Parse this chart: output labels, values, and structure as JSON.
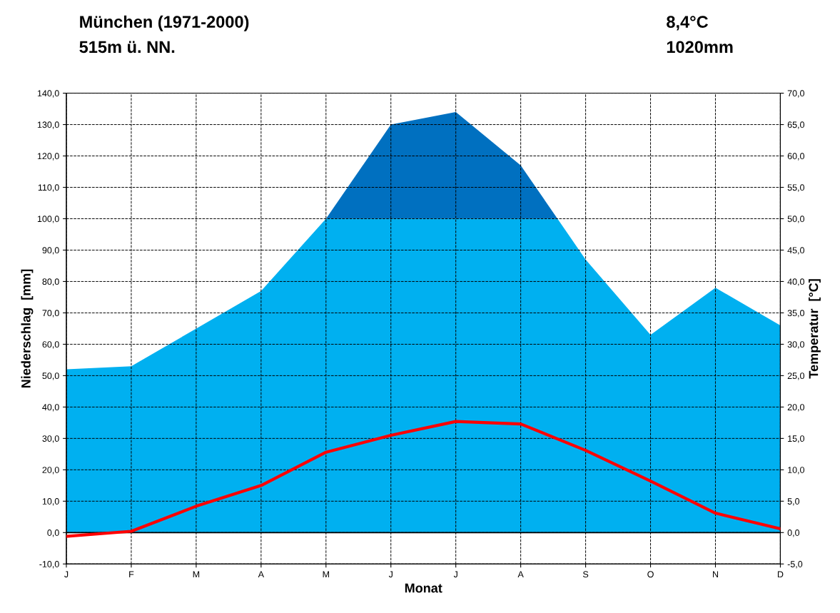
{
  "chart_data": {
    "type": "area",
    "title": "München (1971-2000)",
    "subtitle": "515m ü. NN.",
    "annotations": [
      "8,4°C",
      "1020mm"
    ],
    "xlabel": "Monat",
    "ylabel": "Niederschlag  [mm]",
    "y2label": "Temperatur  [°C]",
    "categories": [
      "J",
      "F",
      "M",
      "A",
      "M",
      "J",
      "J",
      "A",
      "S",
      "O",
      "N",
      "D"
    ],
    "series": [
      {
        "color": "#00b0f0",
        "values": [
          52,
          53,
          65,
          77,
          100,
          130,
          134,
          117,
          87,
          63,
          78,
          66
        ]
      },
      {
        "type": "line",
        "axis": "y2",
        "color": "#ff0000",
        "values": [
          -0.6,
          0.2,
          4.2,
          7.5,
          12.8,
          15.5,
          17.7,
          17.3,
          13.1,
          8.2,
          3.1,
          0.6
        ]
      }
    ],
    "ylim": [
      -10,
      140
    ],
    "yticks": [
      {
        "value": -10,
        "label": "-10,0"
      },
      {
        "value": 0,
        "label": "0,0"
      },
      {
        "value": 10,
        "label": "10,0"
      },
      {
        "value": 20,
        "label": "20,0"
      },
      {
        "value": 30,
        "label": "30,0"
      },
      {
        "value": 40,
        "label": "40,0"
      },
      {
        "value": 50,
        "label": "50,0"
      },
      {
        "value": 60,
        "label": "60,0"
      },
      {
        "value": 70,
        "label": "70,0"
      },
      {
        "value": 80,
        "label": "80,0"
      },
      {
        "value": 90,
        "label": "90,0"
      },
      {
        "value": 100,
        "label": "100,0"
      },
      {
        "value": 110,
        "label": "110,0"
      },
      {
        "value": 120,
        "label": "120,0"
      },
      {
        "value": 130,
        "label": "130,0"
      },
      {
        "value": 140,
        "label": "140,0"
      }
    ],
    "y2lim": [
      -5,
      70
    ],
    "y2ticks": [
      {
        "value": -5,
        "label": "-5,0"
      },
      {
        "value": 0,
        "label": "0,0"
      },
      {
        "value": 5,
        "label": "5,0"
      },
      {
        "value": 10,
        "label": "10,0"
      },
      {
        "value": 15,
        "label": "15,0"
      },
      {
        "value": 20,
        "label": "20,0"
      },
      {
        "value": 25,
        "label": "25,0"
      },
      {
        "value": 30,
        "label": "30,0"
      },
      {
        "value": 35,
        "label": "35,0"
      },
      {
        "value": 40,
        "label": "40,0"
      },
      {
        "value": 45,
        "label": "45,0"
      },
      {
        "value": 50,
        "label": "50,0"
      },
      {
        "value": 55,
        "label": "55,0"
      },
      {
        "value": 60,
        "label": "60,0"
      },
      {
        "value": 65,
        "label": "65,0"
      },
      {
        "value": 70,
        "label": "70,0"
      }
    ],
    "bands": [
      {
        "axis": "y",
        "from": 100,
        "to": 140,
        "color": "#0070c0"
      }
    ],
    "ref_lines": [
      {
        "axis": "y",
        "value": 0,
        "color": "#000000"
      }
    ],
    "grid": true,
    "marker": "none",
    "legend": false
  }
}
